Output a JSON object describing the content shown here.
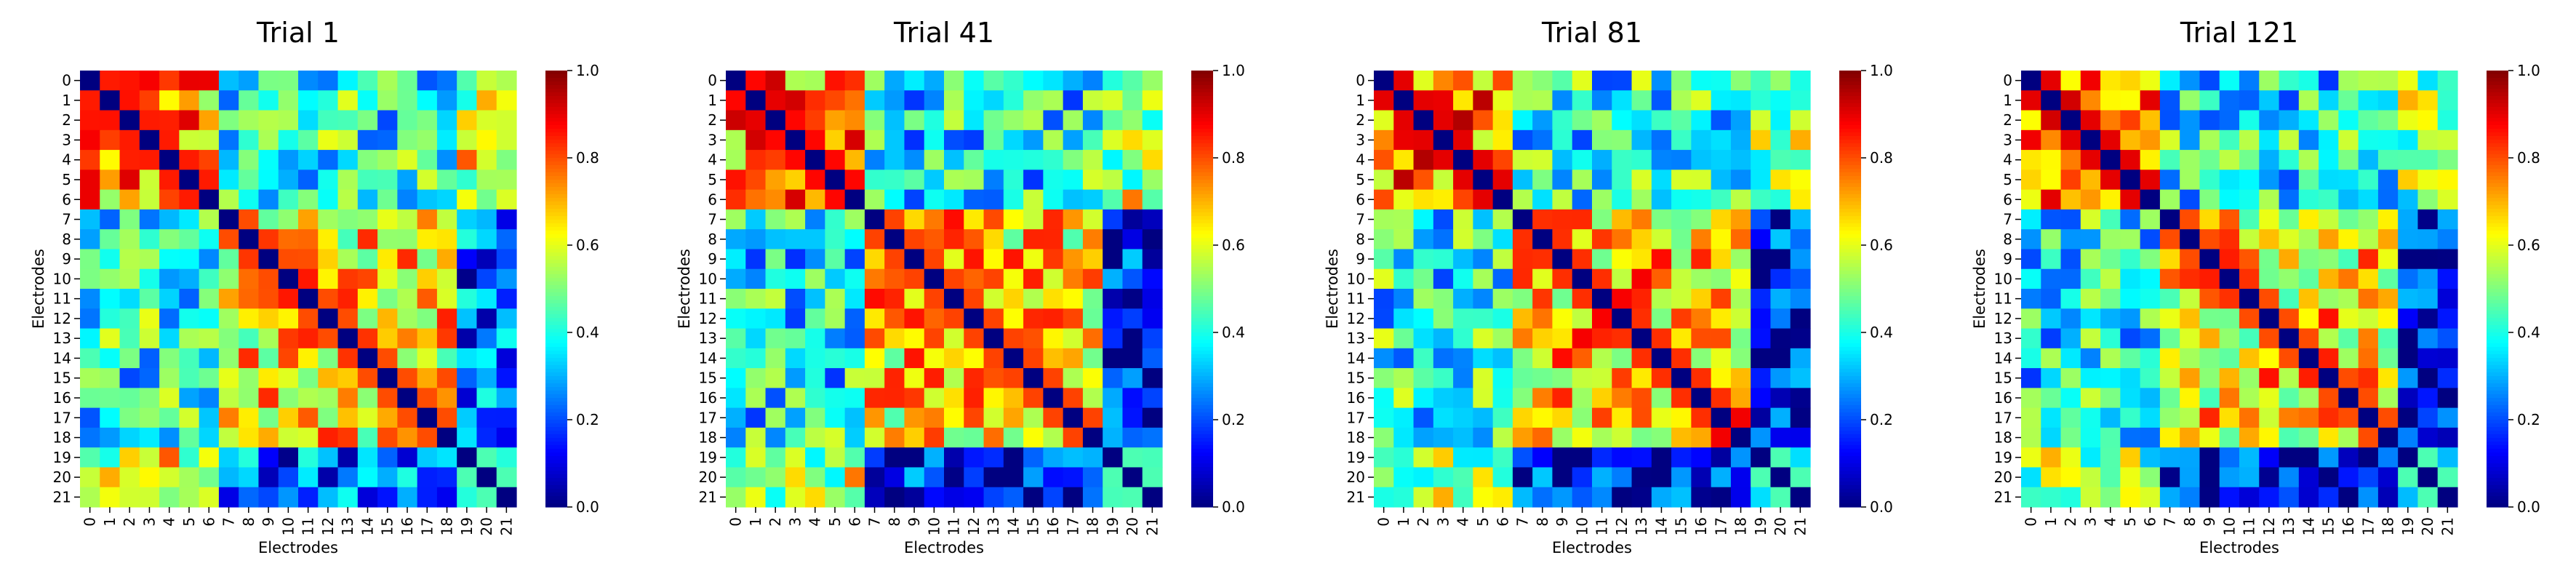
{
  "figure": {
    "colorbar_ticks": [
      "0.0",
      "0.2",
      "0.4",
      "0.6",
      "0.8",
      "1.0"
    ],
    "colormap": "jet",
    "colors": {
      "background": "#ffffff",
      "text": "#000000"
    }
  },
  "chart_data": [
    {
      "type": "heatmap",
      "title": "Trial 1",
      "xlabel": "Electrodes",
      "ylabel": "Electrodes",
      "x_tick_labels": [
        "0",
        "1",
        "2",
        "3",
        "4",
        "5",
        "6",
        "7",
        "8",
        "9",
        "10",
        "11",
        "12",
        "13",
        "14",
        "15",
        "16",
        "17",
        "18",
        "19",
        "20",
        "21"
      ],
      "y_tick_labels": [
        "0",
        "1",
        "2",
        "3",
        "4",
        "5",
        "6",
        "7",
        "8",
        "9",
        "10",
        "11",
        "12",
        "13",
        "14",
        "15",
        "16",
        "17",
        "18",
        "19",
        "20",
        "21"
      ],
      "color_range": [
        0.0,
        1.0
      ],
      "diagonal_value": 0.0,
      "blocks": [
        {
          "rows": [
            0,
            6
          ],
          "cols": [
            0,
            6
          ],
          "value": 0.7
        },
        {
          "rows": [
            7,
            18
          ],
          "cols": [
            7,
            18
          ],
          "value": 0.65
        },
        {
          "rows": [
            19,
            21
          ],
          "cols": [
            19,
            21
          ],
          "value": 0.3
        },
        {
          "rows": [
            0,
            6
          ],
          "cols": [
            7,
            18
          ],
          "value": 0.4
        },
        {
          "rows": [
            0,
            6
          ],
          "cols": [
            19,
            21
          ],
          "value": 0.6
        },
        {
          "rows": [
            7,
            18
          ],
          "cols": [
            19,
            21
          ],
          "value": 0.2
        }
      ]
    },
    {
      "type": "heatmap",
      "title": "Trial 41",
      "xlabel": "Electrodes",
      "ylabel": "Electrodes",
      "x_tick_labels": [
        "0",
        "1",
        "2",
        "3",
        "4",
        "5",
        "6",
        "7",
        "8",
        "9",
        "10",
        "11",
        "12",
        "13",
        "14",
        "15",
        "16",
        "17",
        "18",
        "19",
        "20",
        "21"
      ],
      "y_tick_labels": [
        "0",
        "1",
        "2",
        "3",
        "4",
        "5",
        "6",
        "7",
        "8",
        "9",
        "10",
        "11",
        "12",
        "13",
        "14",
        "15",
        "16",
        "17",
        "18",
        "19",
        "20",
        "21"
      ],
      "color_range": [
        0.0,
        1.0
      ],
      "diagonal_value": 0.0,
      "blocks": [
        {
          "rows": [
            0,
            6
          ],
          "cols": [
            0,
            6
          ],
          "value": 0.72
        },
        {
          "rows": [
            7,
            18
          ],
          "cols": [
            7,
            18
          ],
          "value": 0.66
        },
        {
          "rows": [
            19,
            21
          ],
          "cols": [
            19,
            21
          ],
          "value": 0.3
        },
        {
          "rows": [
            0,
            6
          ],
          "cols": [
            7,
            18
          ],
          "value": 0.38
        },
        {
          "rows": [
            0,
            6
          ],
          "cols": [
            19,
            21
          ],
          "value": 0.55
        },
        {
          "rows": [
            7,
            18
          ],
          "cols": [
            19,
            21
          ],
          "value": 0.15
        }
      ]
    },
    {
      "type": "heatmap",
      "title": "Trial 81",
      "xlabel": "Electrodes",
      "ylabel": "Electrodes",
      "x_tick_labels": [
        "0",
        "1",
        "2",
        "3",
        "4",
        "5",
        "6",
        "7",
        "8",
        "9",
        "10",
        "11",
        "12",
        "13",
        "14",
        "15",
        "16",
        "17",
        "18",
        "19",
        "20",
        "21"
      ],
      "y_tick_labels": [
        "0",
        "1",
        "2",
        "3",
        "4",
        "5",
        "6",
        "7",
        "8",
        "9",
        "10",
        "11",
        "12",
        "13",
        "14",
        "15",
        "16",
        "17",
        "18",
        "19",
        "20",
        "21"
      ],
      "color_range": [
        0.0,
        1.0
      ],
      "diagonal_value": 0.0,
      "blocks": [
        {
          "rows": [
            0,
            6
          ],
          "cols": [
            0,
            6
          ],
          "value": 0.75
        },
        {
          "rows": [
            7,
            18
          ],
          "cols": [
            7,
            18
          ],
          "value": 0.68
        },
        {
          "rows": [
            19,
            21
          ],
          "cols": [
            19,
            21
          ],
          "value": 0.3
        },
        {
          "rows": [
            0,
            6
          ],
          "cols": [
            7,
            18
          ],
          "value": 0.4
        },
        {
          "rows": [
            0,
            6
          ],
          "cols": [
            19,
            21
          ],
          "value": 0.5
        },
        {
          "rows": [
            7,
            18
          ],
          "cols": [
            19,
            21
          ],
          "value": 0.12
        }
      ]
    },
    {
      "type": "heatmap",
      "title": "Trial 121",
      "xlabel": "Electrodes",
      "ylabel": "Electrodes",
      "x_tick_labels": [
        "0",
        "1",
        "2",
        "3",
        "4",
        "5",
        "6",
        "7",
        "8",
        "9",
        "10",
        "11",
        "12",
        "13",
        "14",
        "15",
        "16",
        "17",
        "18",
        "19",
        "20",
        "21"
      ],
      "y_tick_labels": [
        "0",
        "1",
        "2",
        "3",
        "4",
        "5",
        "6",
        "7",
        "8",
        "9",
        "10",
        "11",
        "12",
        "13",
        "14",
        "15",
        "16",
        "17",
        "18",
        "19",
        "20",
        "21"
      ],
      "color_range": [
        0.0,
        1.0
      ],
      "diagonal_value": 0.0,
      "blocks": [
        {
          "rows": [
            0,
            6
          ],
          "cols": [
            0,
            6
          ],
          "value": 0.75
        },
        {
          "rows": [
            7,
            18
          ],
          "cols": [
            7,
            18
          ],
          "value": 0.65
        },
        {
          "rows": [
            19,
            21
          ],
          "cols": [
            19,
            21
          ],
          "value": 0.3
        },
        {
          "rows": [
            0,
            6
          ],
          "cols": [
            7,
            18
          ],
          "value": 0.38
        },
        {
          "rows": [
            0,
            6
          ],
          "cols": [
            19,
            21
          ],
          "value": 0.5
        },
        {
          "rows": [
            7,
            18
          ],
          "cols": [
            19,
            21
          ],
          "value": 0.1
        }
      ]
    }
  ]
}
